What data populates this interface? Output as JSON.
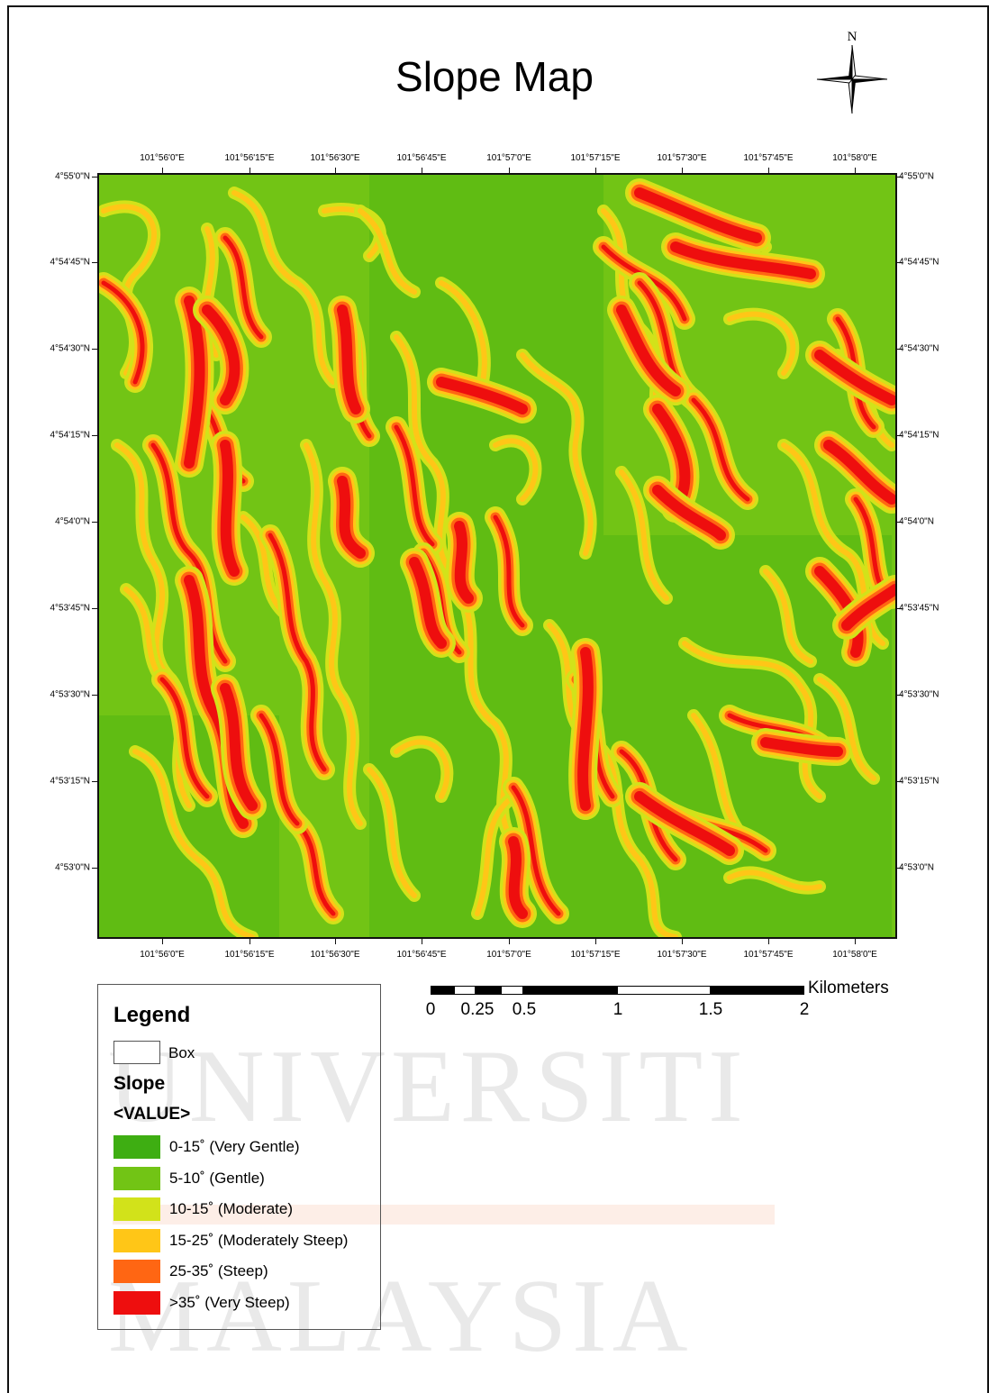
{
  "title": "Slope Map",
  "north_arrow": {
    "label": "N"
  },
  "watermark": {
    "line1": "UNIVERSITI",
    "line2": "MALAYSIA"
  },
  "longitude_ticks": [
    "101°56'0\"E",
    "101°56'15\"E",
    "101°56'30\"E",
    "101°56'45\"E",
    "101°57'0\"E",
    "101°57'15\"E",
    "101°57'30\"E",
    "101°57'45\"E",
    "101°58'0\"E"
  ],
  "latitude_ticks": [
    "4°55'0\"N",
    "4°54'45\"N",
    "4°54'30\"N",
    "4°54'15\"N",
    "4°54'0\"N",
    "4°53'45\"N",
    "4°53'30\"N",
    "4°53'15\"N",
    "4°53'0\"N"
  ],
  "scale_bar": {
    "unit": "Kilometers",
    "labels": [
      "0",
      "0.25",
      "0.5",
      "1",
      "1.5",
      "2"
    ]
  },
  "legend": {
    "title": "Legend",
    "box_label": "Box",
    "layer_title": "Slope",
    "field": "<VALUE>",
    "classes": [
      {
        "label": "0-15˚ (Very Gentle)",
        "color": "#3eae12"
      },
      {
        "label": "5-10˚ (Gentle)",
        "color": "#72c415"
      },
      {
        "label": "10-15˚ (Moderate)",
        "color": "#d2e21a"
      },
      {
        "label": "15-25˚ (Moderately Steep)",
        "color": "#ffc617"
      },
      {
        "label": "25-35˚ (Steep)",
        "color": "#ff6613"
      },
      {
        "label": ">35˚ (Very Steep)",
        "color": "#ee0e0e"
      }
    ]
  }
}
